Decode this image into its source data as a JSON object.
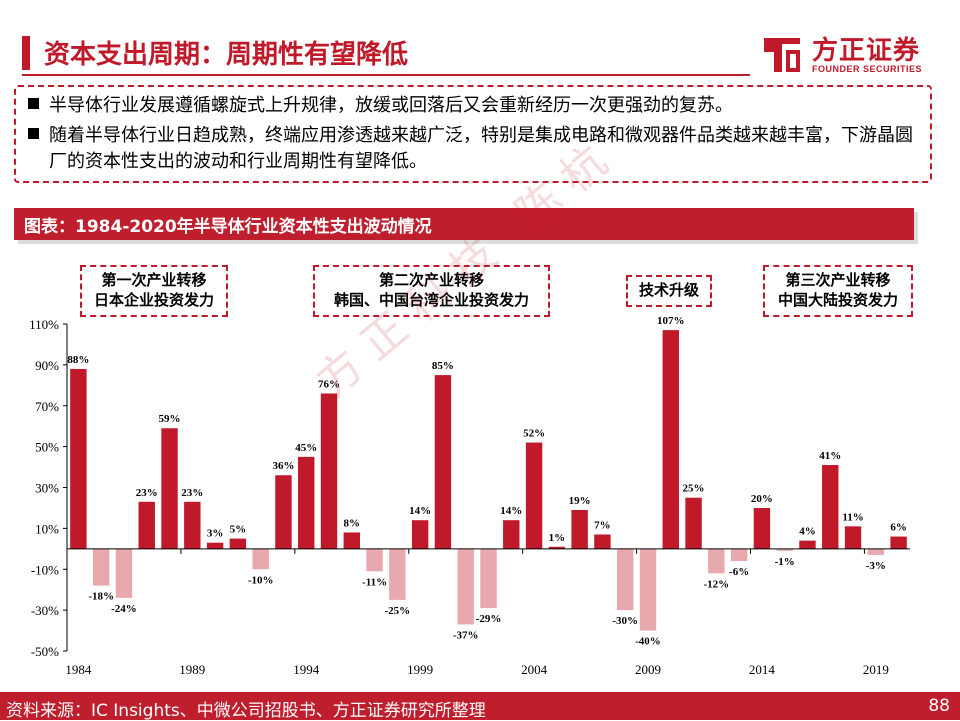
{
  "header": {
    "title": "资本支出周期：周期性有望降低",
    "logo_cn": "方正证券",
    "logo_en": "FOUNDER SECURITIES"
  },
  "bullets": [
    "半导体行业发展遵循螺旋式上升规律，放缓或回落后又会重新经历一次更强劲的复苏。",
    "随着半导体行业日趋成熟，终端应用渗透越来越广泛，特别是集成电路和微观器件品类越来越丰富，下游晶圆厂的资本性支出的波动和行业周期性有望降低。"
  ],
  "chart_header": "图表：1984-2020年半导体行业资本性支出波动情况",
  "notes": [
    {
      "line1": "第一次产业转移",
      "line2": "日本企业投资发力"
    },
    {
      "line1": "第二次产业转移",
      "line2": "韩国、中国台湾企业投资发力"
    },
    {
      "line1": "技术升级",
      "line2": ""
    },
    {
      "line1": "第三次产业转移",
      "line2": "中国大陆投资发力"
    }
  ],
  "watermark": "方正科技 陈杭",
  "footer": {
    "source": "资料来源：IC Insights、中微公司招股书、方正证券研究所整理",
    "page": "88"
  },
  "colors": {
    "accent": "#c0192a",
    "positive_bar": "#c0192a",
    "negative_bar": "#e8a9ae"
  },
  "chart_data": {
    "type": "bar",
    "x": [
      1984,
      1985,
      1986,
      1987,
      1988,
      1989,
      1990,
      1991,
      1992,
      1993,
      1994,
      1995,
      1996,
      1997,
      1998,
      1999,
      2000,
      2001,
      2002,
      2003,
      2004,
      2005,
      2006,
      2007,
      2008,
      2009,
      2010,
      2011,
      2012,
      2013,
      2014,
      2015,
      2016,
      2017,
      2018,
      2019,
      2020
    ],
    "values": [
      88,
      -18,
      -24,
      23,
      59,
      23,
      3,
      5,
      -10,
      36,
      45,
      76,
      8,
      -11,
      -25,
      14,
      85,
      -37,
      -29,
      14,
      52,
      1,
      19,
      7,
      -30,
      -40,
      107,
      25,
      -12,
      -6,
      20,
      -1,
      4,
      41,
      11,
      -3,
      6
    ],
    "data_labels": [
      "88%",
      "-18%",
      "-24%",
      "23%",
      "59%",
      "23%",
      "3%",
      "5%",
      "-10%",
      "36%",
      "45%",
      "76%",
      "8%",
      "-11%",
      "-25%",
      "14%",
      "85%",
      "-37%",
      "-29%",
      "14%",
      "52%",
      "1%",
      "19%",
      "7%",
      "-30%",
      "-40%",
      "107%",
      "25%",
      "-12%",
      "-6%",
      "20%",
      "-1%",
      "4%",
      "41%",
      "11%",
      "-3%",
      "6%"
    ],
    "x_tick_labels": [
      "1984",
      "1989",
      "1994",
      "1999",
      "2004",
      "2009",
      "2014",
      "2019"
    ],
    "y_tick_labels": [
      "110%",
      "90%",
      "70%",
      "50%",
      "30%",
      "10%",
      "-10%",
      "-30%",
      "-50%"
    ],
    "ylim": [
      -50,
      110
    ],
    "title": "",
    "xlabel": "",
    "ylabel": ""
  }
}
